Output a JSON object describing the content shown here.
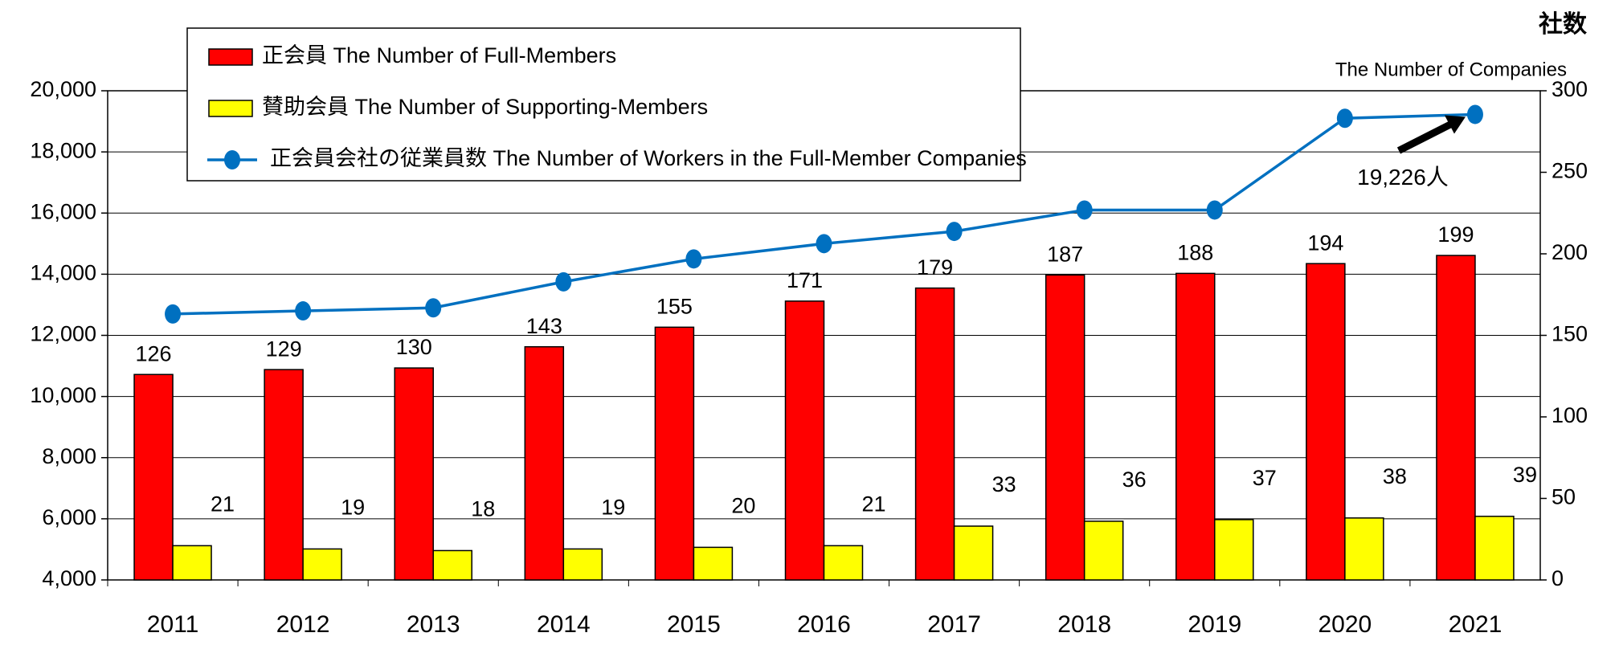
{
  "chart_data": {
    "type": "bar",
    "categories": [
      "2011",
      "2012",
      "2013",
      "2014",
      "2015",
      "2016",
      "2017",
      "2018",
      "2019",
      "2020",
      "2021"
    ],
    "series": [
      {
        "name": "正会員 The Number of Full-Members",
        "color": "#ff0000",
        "axis": "y2",
        "type": "bar",
        "values": [
          126,
          129,
          130,
          143,
          155,
          171,
          179,
          187,
          188,
          194,
          199
        ]
      },
      {
        "name": "賛助会員 The Number of Supporting-Members",
        "color": "#ffff00",
        "axis": "y2",
        "type": "bar",
        "values": [
          21,
          19,
          18,
          19,
          20,
          21,
          33,
          36,
          37,
          38,
          39
        ]
      },
      {
        "name": "正会員会社の従業員数 The Number of Workers in the Full-Member Companies",
        "color": "#0070c0",
        "axis": "y",
        "type": "line",
        "values": [
          12700,
          12800,
          12900,
          13750,
          14500,
          15000,
          15400,
          16100,
          16100,
          19100,
          19226
        ]
      }
    ],
    "ylim": [
      4000,
      20000
    ],
    "yticks": [
      {
        "value": 4000,
        "label": "4,000"
      },
      {
        "value": 6000,
        "label": "6,000"
      },
      {
        "value": 8000,
        "label": "8,000"
      },
      {
        "value": 10000,
        "label": "10,000"
      },
      {
        "value": 12000,
        "label": "12,000"
      },
      {
        "value": 14000,
        "label": "14,000"
      },
      {
        "value": 16000,
        "label": "16,000"
      },
      {
        "value": 18000,
        "label": "18,000"
      },
      {
        "value": 20000,
        "label": "20,000"
      }
    ],
    "y2lim": [
      0,
      300
    ],
    "y2ticks": [
      0,
      50,
      100,
      150,
      200,
      250,
      300
    ],
    "y2label": "社数",
    "y2sublabel": "The Number of Companies",
    "annotation": "19,226人",
    "grid": true
  }
}
